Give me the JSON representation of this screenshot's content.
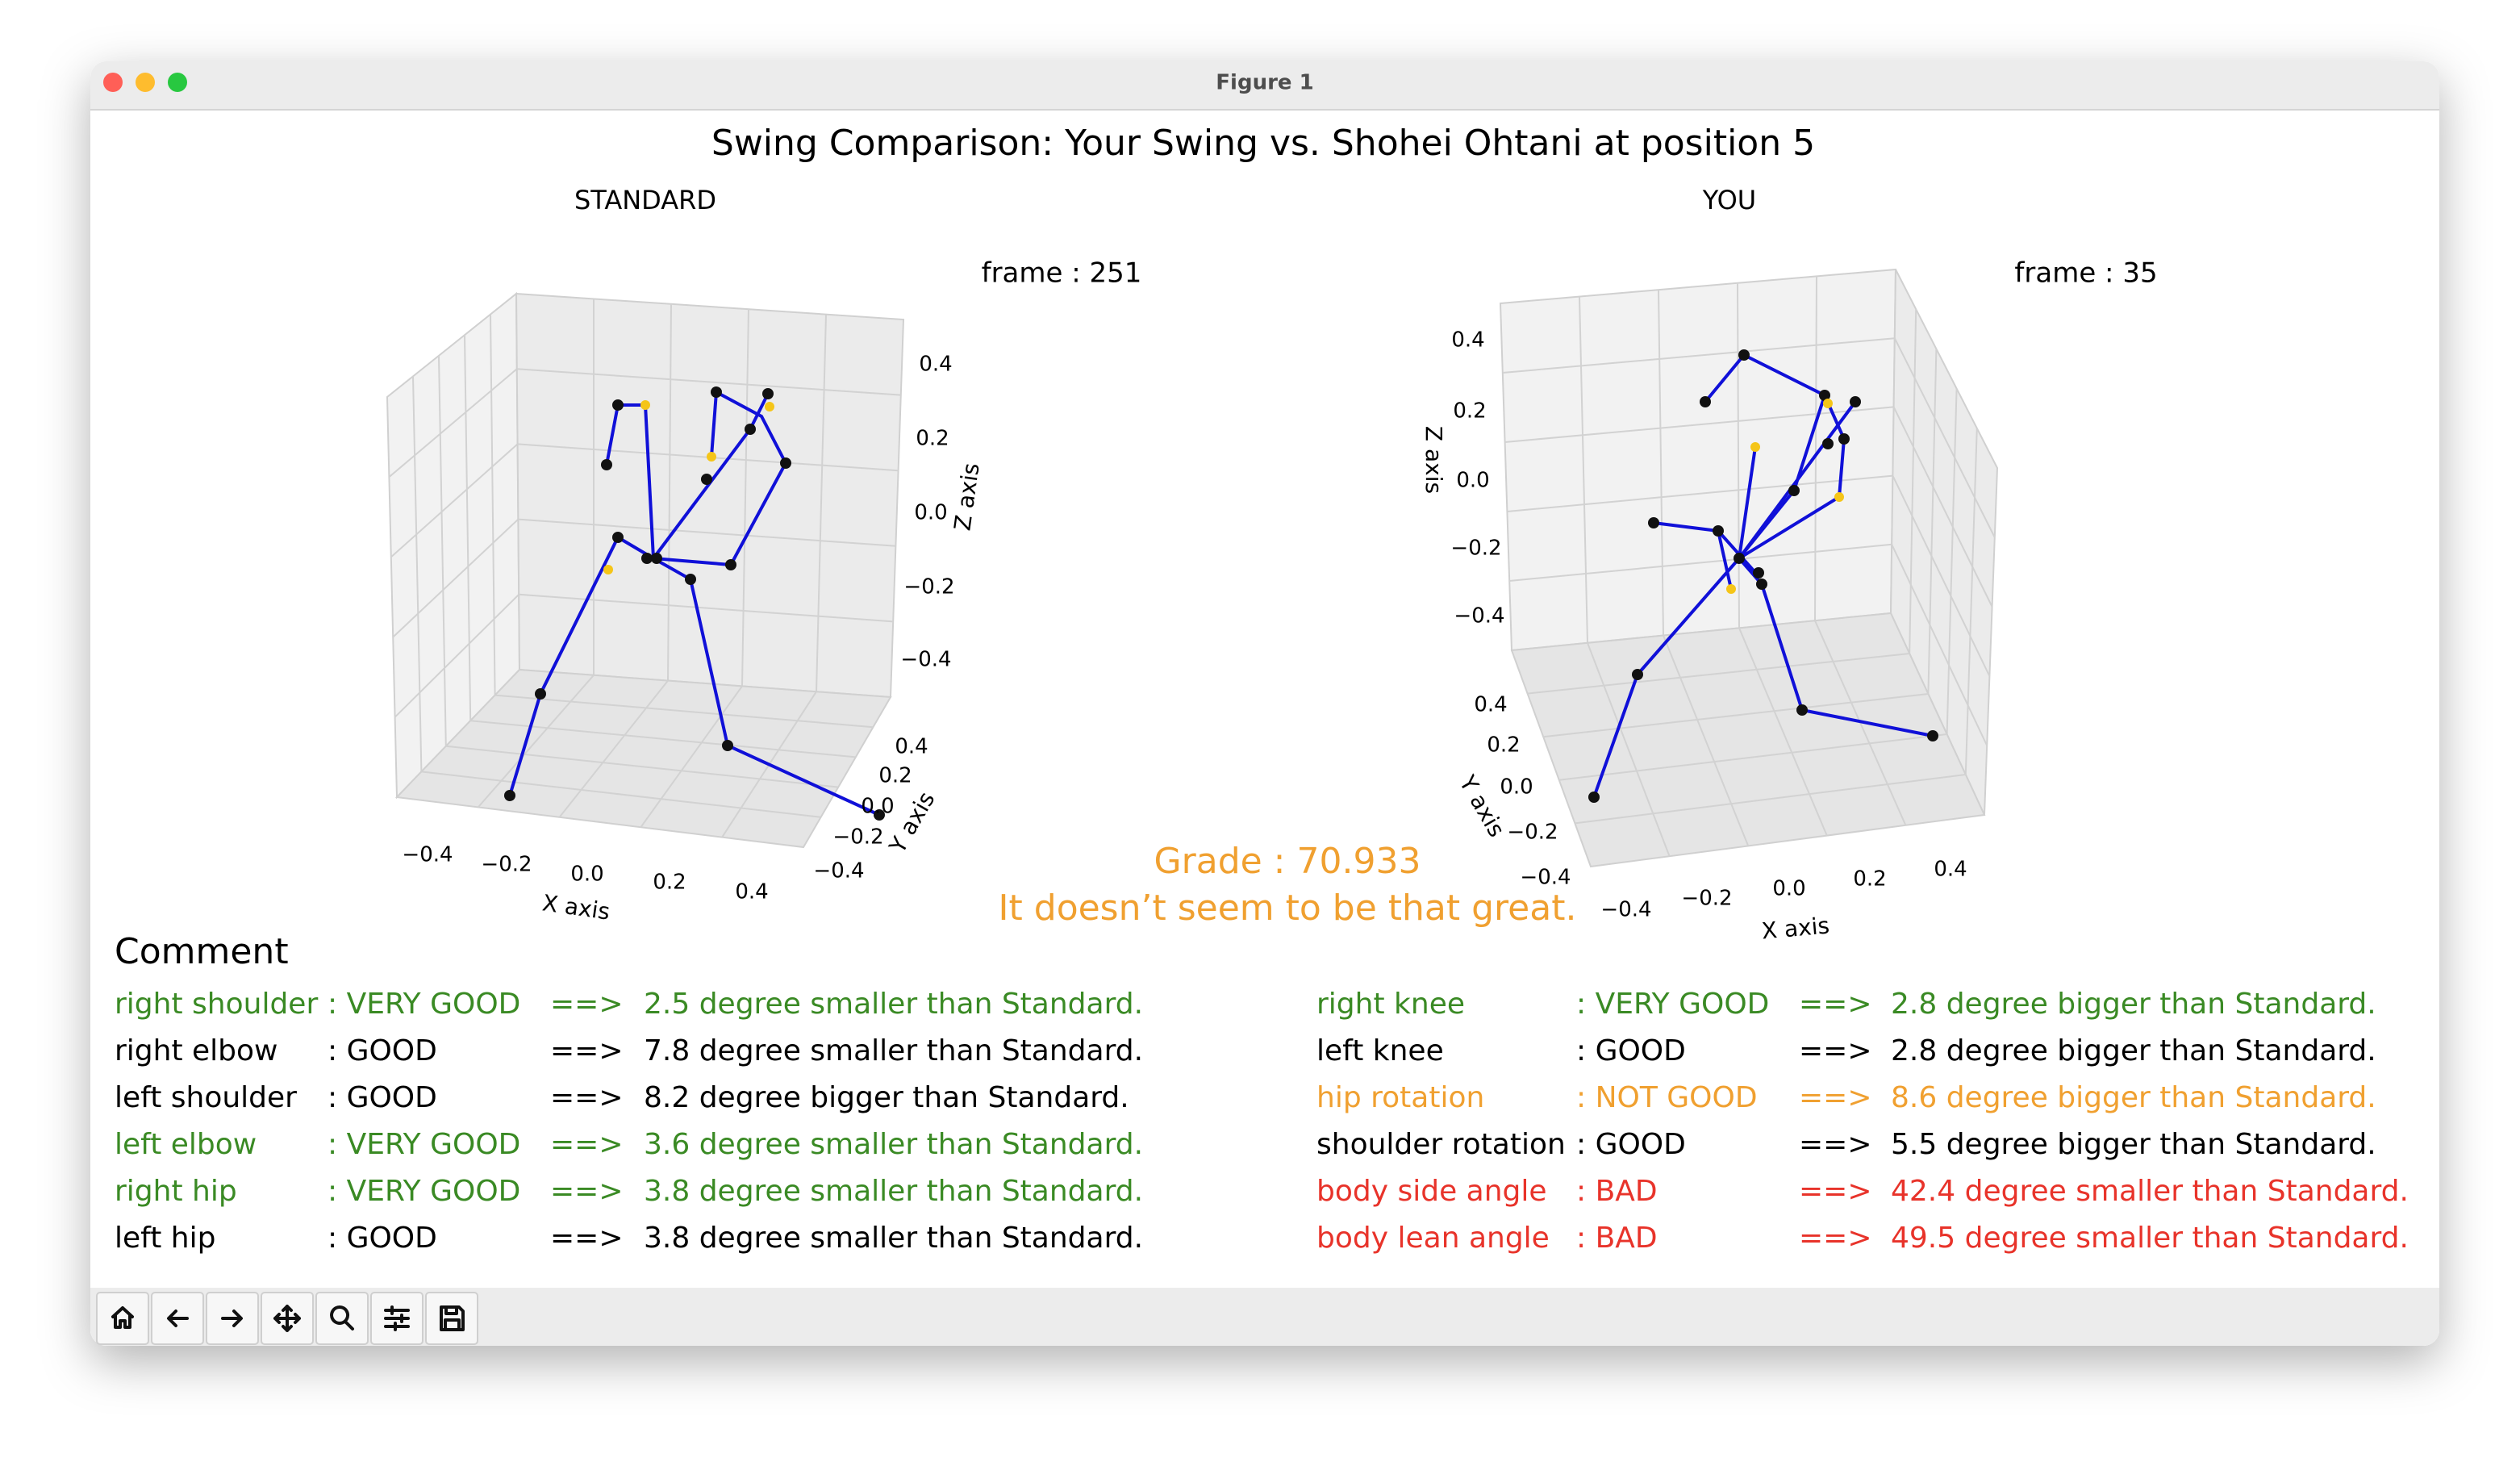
{
  "window": {
    "title": "Figure 1"
  },
  "figure": {
    "title": "Swing Comparison: Your Swing vs. Shohei Ohtani at position 5",
    "panels": [
      {
        "title": "STANDARD",
        "frame": "frame : 251",
        "x_label": "X axis",
        "y_label": "Y axis",
        "z_label": "Z axis",
        "x_ticks": [
          "−0.4",
          "−0.2",
          "0.0",
          "0.2",
          "0.4"
        ],
        "y_ticks": [
          "0.4",
          "0.2",
          "0.0",
          "−0.2",
          "−0.4"
        ],
        "z_ticks": [
          "0.4",
          "0.2",
          "0.0",
          "−0.2",
          "−0.4"
        ]
      },
      {
        "title": "YOU",
        "frame": "frame : 35",
        "x_label": "X axis",
        "y_label": "Y axis",
        "z_label": "Z axis",
        "x_ticks": [
          "−0.4",
          "−0.2",
          "0.0",
          "0.2",
          "0.4"
        ],
        "y_ticks": [
          "0.4",
          "0.2",
          "0.0",
          "−0.2",
          "−0.4"
        ],
        "z_ticks": [
          "0.4",
          "0.2",
          "0.0",
          "−0.2",
          "−0.4"
        ]
      }
    ],
    "grade": "Grade : 70.933",
    "grade_comment": "It doesn’t seem to be that great.",
    "comment": {
      "heading": "Comment",
      "columns": [
        [
          {
            "part": "right shoulder",
            "rating": ": VERY GOOD",
            "arrow": "==>",
            "detail": "2.5 degree smaller than Standard.",
            "color": "#3a8a24"
          },
          {
            "part": "right elbow",
            "rating": ": GOOD",
            "arrow": "==>",
            "detail": "7.8 degree smaller than Standard.",
            "color": "#000000"
          },
          {
            "part": "left shoulder",
            "rating": ": GOOD",
            "arrow": "==>",
            "detail": "8.2 degree bigger than Standard.",
            "color": "#000000"
          },
          {
            "part": "left elbow",
            "rating": ": VERY GOOD",
            "arrow": "==>",
            "detail": "3.6 degree smaller than Standard.",
            "color": "#3a8a24"
          },
          {
            "part": "right hip",
            "rating": ": VERY GOOD",
            "arrow": "==>",
            "detail": "3.8 degree smaller than Standard.",
            "color": "#3a8a24"
          },
          {
            "part": "left hip",
            "rating": ": GOOD",
            "arrow": "==>",
            "detail": "3.8 degree smaller than Standard.",
            "color": "#000000"
          }
        ],
        [
          {
            "part": "right knee",
            "rating": ": VERY GOOD",
            "arrow": "==>",
            "detail": "2.8 degree bigger than Standard.",
            "color": "#3a8a24"
          },
          {
            "part": "left knee",
            "rating": ": GOOD",
            "arrow": "==>",
            "detail": "2.8 degree bigger than Standard.",
            "color": "#000000"
          },
          {
            "part": "hip rotation",
            "rating": ": NOT GOOD",
            "arrow": "==>",
            "detail": "8.6 degree bigger than Standard.",
            "color": "#f0a030"
          },
          {
            "part": "shoulder rotation",
            "rating": ": GOOD",
            "arrow": "==>",
            "detail": "5.5 degree bigger than Standard.",
            "color": "#000000"
          },
          {
            "part": "body side angle",
            "rating": ": BAD",
            "arrow": "==>",
            "detail": "42.4 degree smaller than Standard.",
            "color": "#e8332a"
          },
          {
            "part": "body lean angle",
            "rating": ": BAD",
            "arrow": "==>",
            "detail": "49.5 degree smaller than Standard.",
            "color": "#e8332a"
          }
        ]
      ]
    }
  }
}
